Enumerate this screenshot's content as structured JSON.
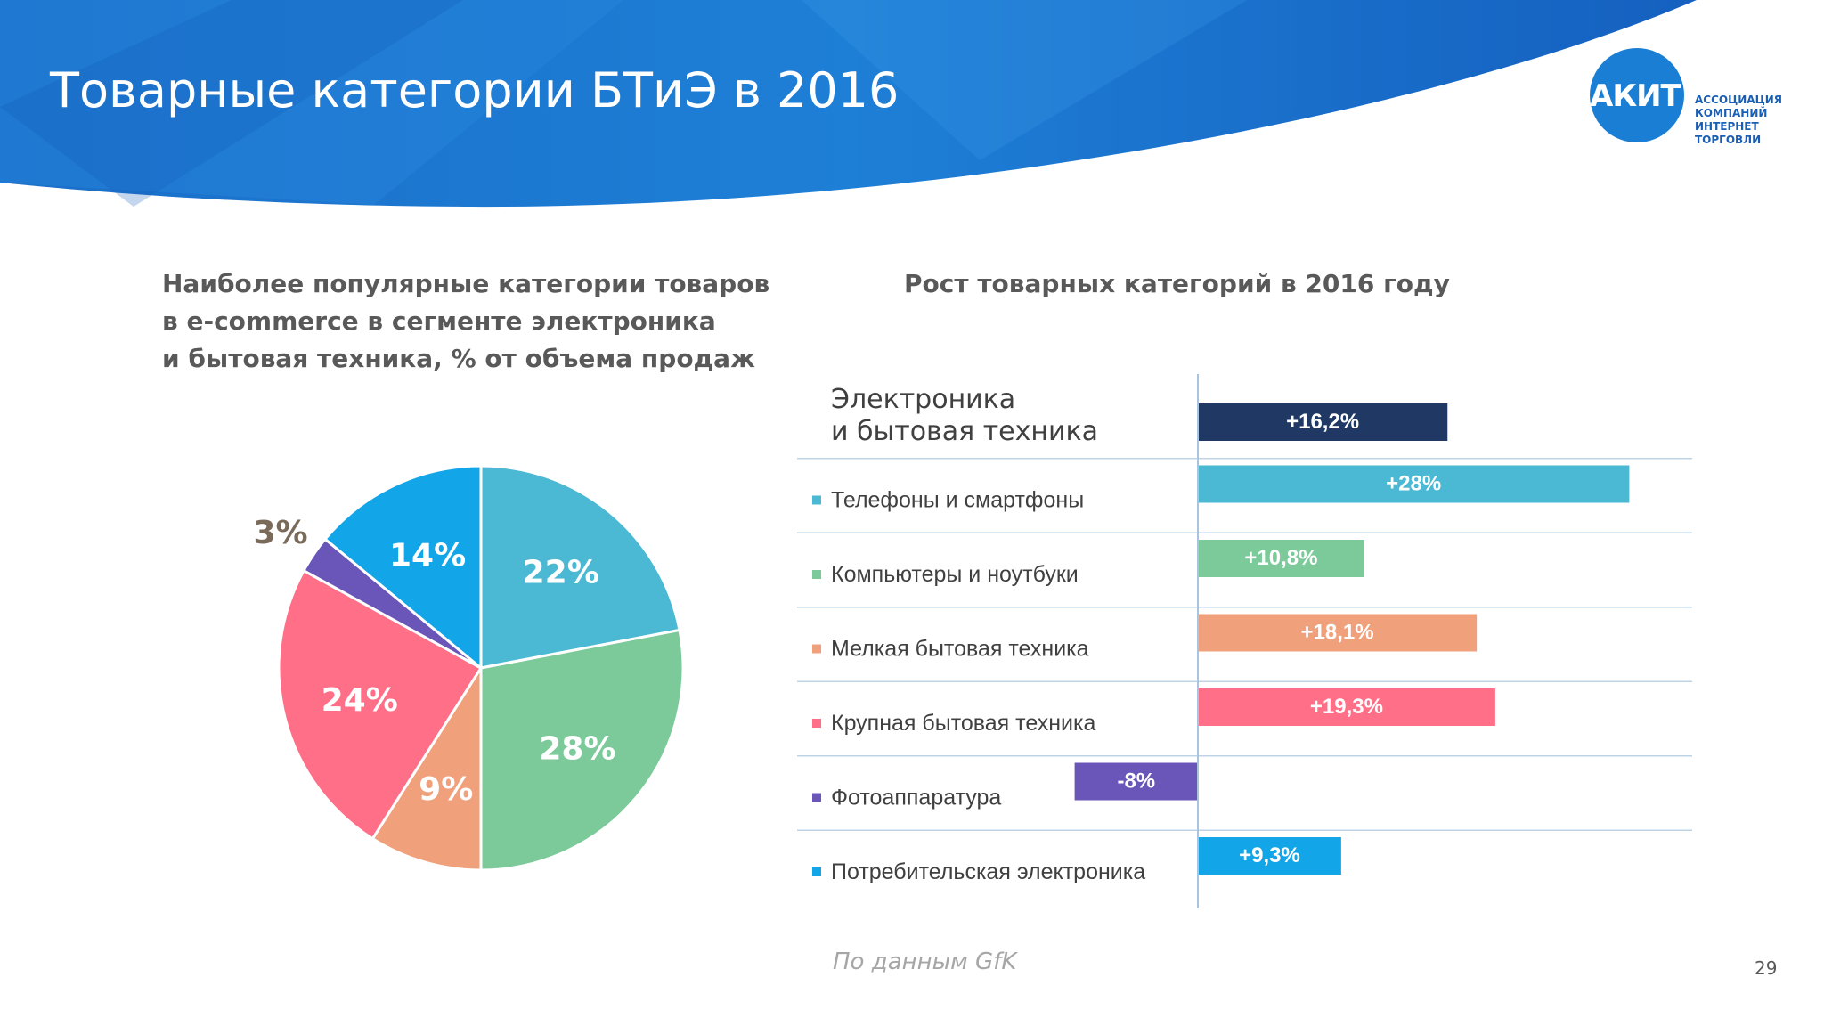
{
  "slide": {
    "title": "Товарные категории БТиЭ в 2016",
    "source": "По данным GfK",
    "page_number": "29"
  },
  "logo": {
    "mark_text": "АКИТ",
    "lines": [
      "АССОЦИАЦИЯ",
      "КОМПАНИЙ",
      "ИНТЕРНЕТ",
      "ТОРГОВЛИ"
    ]
  },
  "chart_data": [
    {
      "type": "pie",
      "title_lines": [
        "Наиболее популярные категории товаров",
        "в e-commerce в сегменте электроника",
        "и бытовая техника, % от объема продаж"
      ],
      "slices": [
        {
          "category": "Телефоны и смартфоны",
          "value": 22,
          "label": "22%",
          "color": "#4bb8d4"
        },
        {
          "category": "Компьютеры и ноутбуки",
          "value": 28,
          "label": "28%",
          "color": "#7cc99a"
        },
        {
          "category": "Мелкая бытовая техника",
          "value": 9,
          "label": "9%",
          "color": "#f0a07a"
        },
        {
          "category": "Крупная бытовая техника",
          "value": 24,
          "label": "24%",
          "color": "#ff7088"
        },
        {
          "category": "Фотоаппаратура",
          "value": 3,
          "label": "3%",
          "color": "#6a55b8"
        },
        {
          "category": "Потребительская электроника",
          "value": 14,
          "label": "14%",
          "color": "#12a6e8"
        }
      ]
    },
    {
      "type": "bar",
      "orientation": "horizontal",
      "title": "Рост товарных категорий в 2016 году",
      "xlim": [
        -10,
        30
      ],
      "rows": [
        {
          "label_lines": [
            "Электроника",
            "и бытовая техника"
          ],
          "value": 16.2,
          "value_label": "+16,2%",
          "color": "#1f3864",
          "total": true
        },
        {
          "label_lines": [
            "Телефоны и смартфоны"
          ],
          "value": 28,
          "value_label": "+28%",
          "color": "#4bb8d4"
        },
        {
          "label_lines": [
            "Компьютеры и ноутбуки"
          ],
          "value": 10.8,
          "value_label": "+10,8%",
          "color": "#7cc99a"
        },
        {
          "label_lines": [
            "Мелкая бытовая техника"
          ],
          "value": 18.1,
          "value_label": "+18,1%",
          "color": "#f0a07a"
        },
        {
          "label_lines": [
            "Крупная бытовая техника"
          ],
          "value": 19.3,
          "value_label": "+19,3%",
          "color": "#ff7088"
        },
        {
          "label_lines": [
            "Фотоаппаратура"
          ],
          "value": -8,
          "value_label": "-8%",
          "color": "#6a55b8"
        },
        {
          "label_lines": [
            "Потребительская электроника"
          ],
          "value": 9.3,
          "value_label": "+9,3%",
          "color": "#12a6e8"
        }
      ]
    }
  ]
}
